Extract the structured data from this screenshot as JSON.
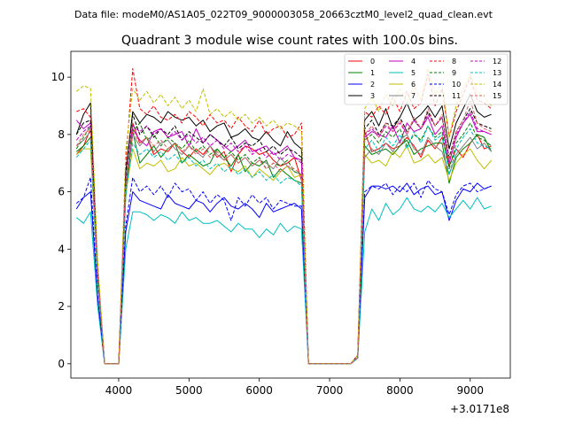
{
  "chart_data": {
    "type": "line",
    "suptitle": "Data file: modeM0/AS1A05_022T09_9000003058_20663cztM0_level2_quad_clean.evt",
    "title": "Quadrant 3 module wise count rates with 100.0s bins.",
    "xlabel": "",
    "ylabel": "",
    "offset_label": "+3.0171e8",
    "xlim": [
      3320,
      9570
    ],
    "ylim": [
      -0.5,
      10.9
    ],
    "xticks": [
      4000,
      5000,
      6000,
      7000,
      8000,
      9000
    ],
    "yticks": [
      0,
      2,
      4,
      6,
      8,
      10
    ],
    "x_start": 3400,
    "x_step": 100,
    "series": [
      {
        "name": "0",
        "color": "#ff0000",
        "dash": "solid",
        "values": [
          7.3,
          7.6,
          8.2,
          3.0,
          0,
          0,
          0,
          6.0,
          8.4,
          7.7,
          7.9,
          7.3,
          7.5,
          7.4,
          7.7,
          7.4,
          7.2,
          7.5,
          7.3,
          7.6,
          7.2,
          7.4,
          6.7,
          7.3,
          7.6,
          7.5,
          7.3,
          7.4,
          7.1,
          6.9,
          7.0,
          7.2,
          6.4,
          0,
          0,
          0,
          0,
          0,
          0,
          0,
          0.2,
          8.1,
          7.4,
          7.5,
          7.7,
          7.5,
          7.6,
          7.9,
          7.6,
          7.2,
          7.8,
          7.5,
          7.9,
          6.9,
          7.5,
          7.2,
          7.7,
          8.0,
          7.5,
          7.6
        ]
      },
      {
        "name": "1",
        "color": "#008000",
        "dash": "solid",
        "values": [
          7.4,
          7.6,
          7.9,
          3.0,
          0,
          0,
          0,
          5.8,
          8.1,
          7.0,
          7.3,
          7.6,
          7.2,
          7.5,
          7.7,
          7.0,
          7.3,
          7.1,
          6.9,
          7.0,
          7.5,
          7.2,
          6.9,
          7.3,
          6.7,
          7.0,
          6.9,
          7.1,
          6.5,
          6.8,
          6.6,
          6.4,
          6.3,
          0,
          0,
          0,
          0,
          0,
          0,
          0,
          0.2,
          7.6,
          7.3,
          7.4,
          7.5,
          7.3,
          7.6,
          7.8,
          7.3,
          7.5,
          7.6,
          7.7,
          7.7,
          6.3,
          7.2,
          7.5,
          7.7,
          8.0,
          7.9,
          7.4
        ]
      },
      {
        "name": "2",
        "color": "#0000ff",
        "dash": "solid",
        "values": [
          5.4,
          5.8,
          6.0,
          2.3,
          0,
          0,
          0,
          4.6,
          6.0,
          5.7,
          5.6,
          5.5,
          5.4,
          5.9,
          5.6,
          5.5,
          5.4,
          5.7,
          5.6,
          5.3,
          5.6,
          5.8,
          5.5,
          5.4,
          5.6,
          5.4,
          5.1,
          5.6,
          5.3,
          5.4,
          5.5,
          5.6,
          5.4,
          0,
          0,
          0,
          0,
          0,
          0,
          0,
          0.2,
          5.8,
          6.2,
          6.2,
          6.1,
          6.2,
          6.0,
          6.3,
          5.9,
          6.1,
          6.2,
          5.9,
          6.0,
          5.0,
          5.7,
          6.1,
          6.0,
          6.3,
          6.1,
          6.2
        ]
      },
      {
        "name": "3",
        "color": "#000000",
        "dash": "solid",
        "values": [
          8.0,
          8.7,
          9.1,
          3.3,
          0,
          0,
          0,
          6.7,
          8.8,
          8.4,
          8.7,
          8.6,
          8.4,
          8.8,
          8.6,
          8.5,
          8.6,
          8.3,
          8.5,
          8.1,
          8.3,
          8.4,
          7.9,
          8.0,
          8.2,
          7.9,
          7.8,
          8.1,
          7.8,
          7.6,
          8.1,
          7.7,
          7.5,
          0,
          0,
          0,
          0,
          0,
          0,
          0,
          0.3,
          8.5,
          8.8,
          8.3,
          8.9,
          8.2,
          8.6,
          9.1,
          8.5,
          8.7,
          9.0,
          8.6,
          9.0,
          7.5,
          8.4,
          8.9,
          9.4,
          8.8,
          8.6,
          8.7
        ]
      },
      {
        "name": "4",
        "color": "#bf00bf",
        "dash": "solid",
        "values": [
          8.5,
          8.2,
          8.4,
          3.1,
          0,
          0,
          0,
          6.3,
          8.2,
          7.8,
          7.6,
          8.1,
          8.2,
          7.9,
          8.0,
          8.1,
          7.6,
          8.2,
          7.7,
          8.0,
          7.8,
          7.6,
          7.4,
          7.6,
          7.8,
          7.4,
          7.5,
          7.6,
          7.3,
          7.4,
          7.6,
          7.2,
          7.1,
          0,
          0,
          0,
          0,
          0,
          0,
          0,
          0.2,
          7.9,
          8.1,
          8.0,
          7.9,
          8.3,
          7.7,
          8.4,
          8.1,
          8.2,
          8.6,
          8.0,
          8.3,
          7.0,
          7.9,
          8.4,
          8.7,
          8.1,
          8.1,
          8.0
        ]
      },
      {
        "name": "5",
        "color": "#00bfbf",
        "dash": "solid",
        "values": [
          5.1,
          4.9,
          5.3,
          2.0,
          0,
          0,
          0,
          4.0,
          5.3,
          5.3,
          5.2,
          5.0,
          5.2,
          5.1,
          4.9,
          5.3,
          5.0,
          5.1,
          4.9,
          4.9,
          5.0,
          4.8,
          4.6,
          4.9,
          4.7,
          4.7,
          4.4,
          4.7,
          4.5,
          4.9,
          4.6,
          4.8,
          4.7,
          0,
          0,
          0,
          0,
          0,
          0,
          0,
          0.2,
          4.6,
          5.4,
          5.0,
          5.6,
          5.2,
          5.4,
          5.8,
          5.4,
          5.3,
          5.5,
          5.3,
          5.6,
          5.1,
          5.4,
          5.7,
          5.4,
          5.8,
          5.4,
          5.5
        ]
      },
      {
        "name": "6",
        "color": "#bfbf00",
        "dash": "solid",
        "values": [
          7.3,
          7.5,
          7.5,
          2.9,
          0,
          0,
          0,
          5.9,
          7.5,
          6.8,
          7.0,
          6.9,
          7.1,
          6.7,
          6.8,
          7.2,
          6.9,
          7.0,
          6.8,
          6.6,
          6.9,
          7.0,
          6.8,
          6.7,
          6.9,
          6.5,
          6.8,
          6.6,
          6.4,
          6.7,
          6.9,
          6.5,
          6.6,
          0,
          0,
          0,
          0,
          0,
          0,
          0,
          0.2,
          7.3,
          7.0,
          7.1,
          6.9,
          7.4,
          7.2,
          7.6,
          7.0,
          7.1,
          7.3,
          7.0,
          7.2,
          6.4,
          7.0,
          7.3,
          7.5,
          7.1,
          6.8,
          7.1
        ]
      },
      {
        "name": "7",
        "color": "#808080",
        "dash": "solid",
        "values": [
          7.6,
          7.8,
          8.1,
          3.1,
          0,
          0,
          0,
          6.1,
          8.0,
          7.6,
          7.9,
          7.4,
          7.7,
          7.8,
          7.5,
          7.3,
          7.6,
          7.4,
          7.2,
          7.6,
          7.3,
          7.1,
          7.3,
          7.0,
          7.2,
          6.9,
          7.1,
          7.0,
          6.8,
          7.2,
          6.9,
          6.7,
          6.6,
          0,
          0,
          0,
          0,
          0,
          0,
          0,
          0.2,
          7.2,
          7.5,
          7.3,
          7.7,
          7.4,
          7.8,
          8.0,
          7.5,
          7.3,
          7.9,
          7.6,
          7.4,
          6.6,
          7.3,
          7.6,
          7.9,
          7.5,
          7.7,
          7.4
        ]
      },
      {
        "name": "8",
        "color": "#ff0000",
        "dash": "dashed",
        "values": [
          8.8,
          8.9,
          8.6,
          3.4,
          0,
          0,
          0,
          7.0,
          10.3,
          8.9,
          8.7,
          9.0,
          8.6,
          8.5,
          8.7,
          8.4,
          8.8,
          8.6,
          8.3,
          8.7,
          8.4,
          8.5,
          8.2,
          8.6,
          8.3,
          8.1,
          8.5,
          8.0,
          8.2,
          8.3,
          7.9,
          8.0,
          8.4,
          0,
          0,
          0,
          0,
          0,
          0,
          0,
          0.3,
          8.8,
          8.6,
          9.0,
          8.7,
          9.3,
          8.8,
          9.5,
          8.9,
          9.1,
          10.1,
          9.0,
          9.6,
          7.9,
          8.8,
          9.4,
          10.0,
          9.2,
          9.1,
          8.9
        ]
      },
      {
        "name": "9",
        "color": "#008000",
        "dash": "dashed",
        "values": [
          7.5,
          7.9,
          8.3,
          3.1,
          0,
          0,
          0,
          6.2,
          8.1,
          8.4,
          7.8,
          8.0,
          7.6,
          7.9,
          7.7,
          7.5,
          7.8,
          7.4,
          7.6,
          7.3,
          7.5,
          7.2,
          7.4,
          7.1,
          7.3,
          7.0,
          7.2,
          6.8,
          7.0,
          6.9,
          7.1,
          6.7,
          6.6,
          0,
          0,
          0,
          0,
          0,
          0,
          0,
          0.2,
          7.8,
          8.0,
          7.7,
          8.1,
          7.9,
          8.2,
          7.6,
          8.0,
          7.8,
          8.3,
          7.9,
          8.1,
          6.8,
          7.7,
          8.0,
          8.4,
          7.9,
          7.8,
          7.6
        ]
      },
      {
        "name": "10",
        "color": "#0000ff",
        "dash": "dashed",
        "values": [
          5.6,
          5.8,
          6.5,
          2.4,
          0,
          0,
          0,
          4.8,
          6.5,
          6.0,
          6.2,
          5.9,
          6.2,
          5.8,
          6.3,
          6.0,
          6.1,
          5.7,
          6.0,
          5.6,
          5.9,
          5.7,
          5.0,
          5.8,
          5.5,
          5.9,
          5.6,
          5.8,
          5.4,
          5.7,
          5.6,
          5.5,
          5.5,
          0,
          0,
          0,
          0,
          0,
          0,
          0,
          0.2,
          6.0,
          6.2,
          6.1,
          6.3,
          5.9,
          6.2,
          6.0,
          6.3,
          5.8,
          6.4,
          6.1,
          6.0,
          5.2,
          5.9,
          6.2,
          6.3,
          6.0,
          6.1,
          6.2
        ]
      },
      {
        "name": "11",
        "color": "#000000",
        "dash": "dashed",
        "values": [
          8.0,
          8.4,
          8.5,
          3.2,
          0,
          0,
          0,
          6.6,
          8.7,
          8.0,
          8.3,
          7.9,
          8.2,
          8.0,
          8.3,
          7.8,
          8.1,
          7.9,
          7.7,
          8.0,
          7.8,
          7.6,
          7.9,
          7.5,
          7.7,
          7.6,
          7.8,
          7.4,
          7.6,
          7.3,
          7.5,
          7.4,
          7.2,
          0,
          0,
          0,
          0,
          0,
          0,
          0,
          0.2,
          8.2,
          8.5,
          8.0,
          8.4,
          8.3,
          8.6,
          8.1,
          8.5,
          8.2,
          8.8,
          8.3,
          8.6,
          7.2,
          8.1,
          8.5,
          8.9,
          8.4,
          8.3,
          8.2
        ]
      },
      {
        "name": "12",
        "color": "#bf00bf",
        "dash": "dashed",
        "values": [
          7.8,
          8.1,
          8.3,
          3.1,
          0,
          0,
          0,
          6.3,
          8.3,
          8.1,
          8.3,
          8.0,
          8.2,
          7.9,
          8.1,
          7.8,
          8.0,
          7.7,
          7.9,
          7.6,
          7.8,
          7.5,
          7.7,
          7.4,
          7.6,
          7.3,
          7.5,
          7.2,
          7.4,
          7.1,
          7.3,
          7.2,
          7.0,
          0,
          0,
          0,
          0,
          0,
          0,
          0,
          0.2,
          8.0,
          8.2,
          7.9,
          8.3,
          8.1,
          8.4,
          8.0,
          8.5,
          8.2,
          8.7,
          8.3,
          8.6,
          7.0,
          8.0,
          8.4,
          8.8,
          8.2,
          8.1,
          8.0
        ]
      },
      {
        "name": "13",
        "color": "#00bfbf",
        "dash": "dashed",
        "values": [
          7.2,
          7.5,
          7.8,
          2.9,
          0,
          0,
          0,
          5.9,
          7.7,
          7.3,
          7.5,
          7.2,
          7.4,
          7.1,
          7.3,
          7.0,
          7.2,
          6.9,
          7.1,
          6.8,
          7.0,
          6.7,
          6.9,
          6.6,
          6.8,
          6.5,
          6.7,
          6.4,
          6.6,
          6.3,
          6.5,
          6.4,
          6.2,
          0,
          0,
          0,
          0,
          0,
          0,
          0,
          0.2,
          7.5,
          7.8,
          7.4,
          7.9,
          7.6,
          8.0,
          7.5,
          8.1,
          7.7,
          8.3,
          7.8,
          8.0,
          6.6,
          7.5,
          7.9,
          8.2,
          7.7,
          7.6,
          7.5
        ]
      },
      {
        "name": "14",
        "color": "#bfbf00",
        "dash": "dashed",
        "values": [
          9.5,
          9.7,
          9.6,
          3.6,
          0,
          0,
          0,
          7.4,
          9.6,
          9.2,
          9.5,
          9.1,
          9.4,
          9.0,
          9.3,
          8.9,
          9.2,
          8.8,
          9.6,
          8.7,
          8.9,
          8.6,
          8.8,
          8.5,
          8.7,
          8.4,
          8.6,
          8.3,
          8.5,
          8.2,
          8.4,
          8.3,
          8.1,
          0,
          0,
          0,
          0,
          0,
          0,
          0,
          0.3,
          8.9,
          9.3,
          8.8,
          9.4,
          9.0,
          9.6,
          9.1,
          9.7,
          9.2,
          10.3,
          9.4,
          9.8,
          7.9,
          9.0,
          9.6,
          10.1,
          9.5,
          9.3,
          9.0
        ]
      },
      {
        "name": "15",
        "color": "#e06060",
        "dash": "dashed",
        "values": [
          7.6,
          8.0,
          8.2,
          3.1,
          0,
          0,
          0,
          6.3,
          8.1,
          7.7,
          7.9,
          7.6,
          7.8,
          7.5,
          7.7,
          7.4,
          7.6,
          7.3,
          7.5,
          7.2,
          7.4,
          7.1,
          7.3,
          7.0,
          7.2,
          6.9,
          7.1,
          6.8,
          7.0,
          6.7,
          6.9,
          6.8,
          6.6,
          0,
          0,
          0,
          0,
          0,
          0,
          0,
          0.2,
          8.0,
          8.3,
          7.9,
          8.4,
          8.1,
          8.5,
          8.0,
          8.6,
          8.2,
          8.9,
          8.3,
          8.7,
          7.1,
          8.1,
          8.5,
          9.2,
          8.4,
          8.2,
          8.1
        ]
      }
    ]
  }
}
